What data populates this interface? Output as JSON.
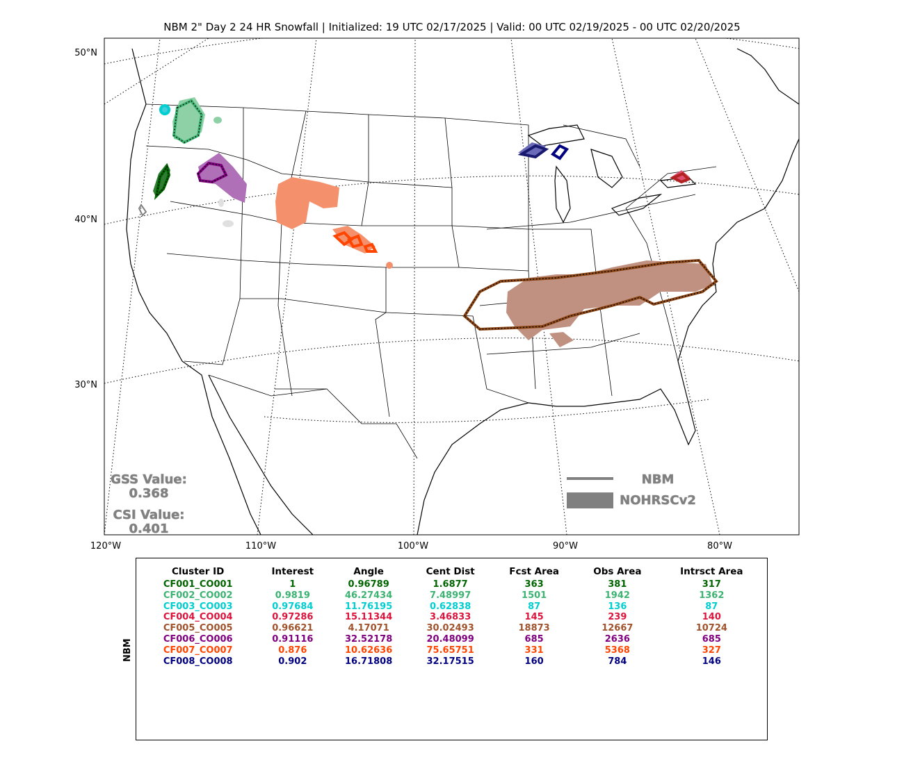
{
  "title": "NBM 2\" Day 2 24 HR Snowfall | Initialized: 19 UTC 02/17/2025 | Valid: 00 UTC 02/19/2025 - 00 UTC 02/20/2025",
  "map": {
    "lat_labels": [
      "50°N",
      "40°N",
      "30°N"
    ],
    "lon_labels": [
      "120°W",
      "110°W",
      "100°W",
      "90°W",
      "80°W"
    ]
  },
  "stats": {
    "gss_label": "GSS Value:",
    "gss_value": "0.368",
    "csi_label": "CSI Value:",
    "csi_value": "0.401"
  },
  "legend": {
    "line_label": "NBM",
    "fill_label": "NOHRSCv2",
    "color": "#808080"
  },
  "table": {
    "side_label": "NBM",
    "headers": [
      "Cluster ID",
      "Interest",
      "Angle",
      "Cent Dist",
      "Fcst Area",
      "Obs Area",
      "Intrsct Area"
    ],
    "rows": [
      {
        "color": "#006400",
        "cells": [
          "CF001_CO001",
          "1",
          "0.96789",
          "1.6877",
          "363",
          "381",
          "317"
        ]
      },
      {
        "color": "#3cb371",
        "cells": [
          "CF002_CO002",
          "0.9819",
          "46.27434",
          "7.48997",
          "1501",
          "1942",
          "1362"
        ]
      },
      {
        "color": "#00ced1",
        "cells": [
          "CF003_CO003",
          "0.97684",
          "11.76195",
          "0.62838",
          "87",
          "136",
          "87"
        ]
      },
      {
        "color": "#dc143c",
        "cells": [
          "CF004_CO004",
          "0.97286",
          "15.11344",
          "3.46833",
          "145",
          "239",
          "140"
        ]
      },
      {
        "color": "#a0522d",
        "cells": [
          "CF005_CO005",
          "0.96621",
          "4.17071",
          "30.02493",
          "18873",
          "12667",
          "10724"
        ]
      },
      {
        "color": "#800080",
        "cells": [
          "CF006_CO006",
          "0.91116",
          "32.52178",
          "20.48099",
          "685",
          "2636",
          "685"
        ]
      },
      {
        "color": "#ff4500",
        "cells": [
          "CF007_CO007",
          "0.876",
          "10.62636",
          "75.65751",
          "331",
          "5368",
          "327"
        ]
      },
      {
        "color": "#000080",
        "cells": [
          "CF008_CO008",
          "0.902",
          "16.71808",
          "32.17515",
          "160",
          "784",
          "146"
        ]
      }
    ]
  }
}
